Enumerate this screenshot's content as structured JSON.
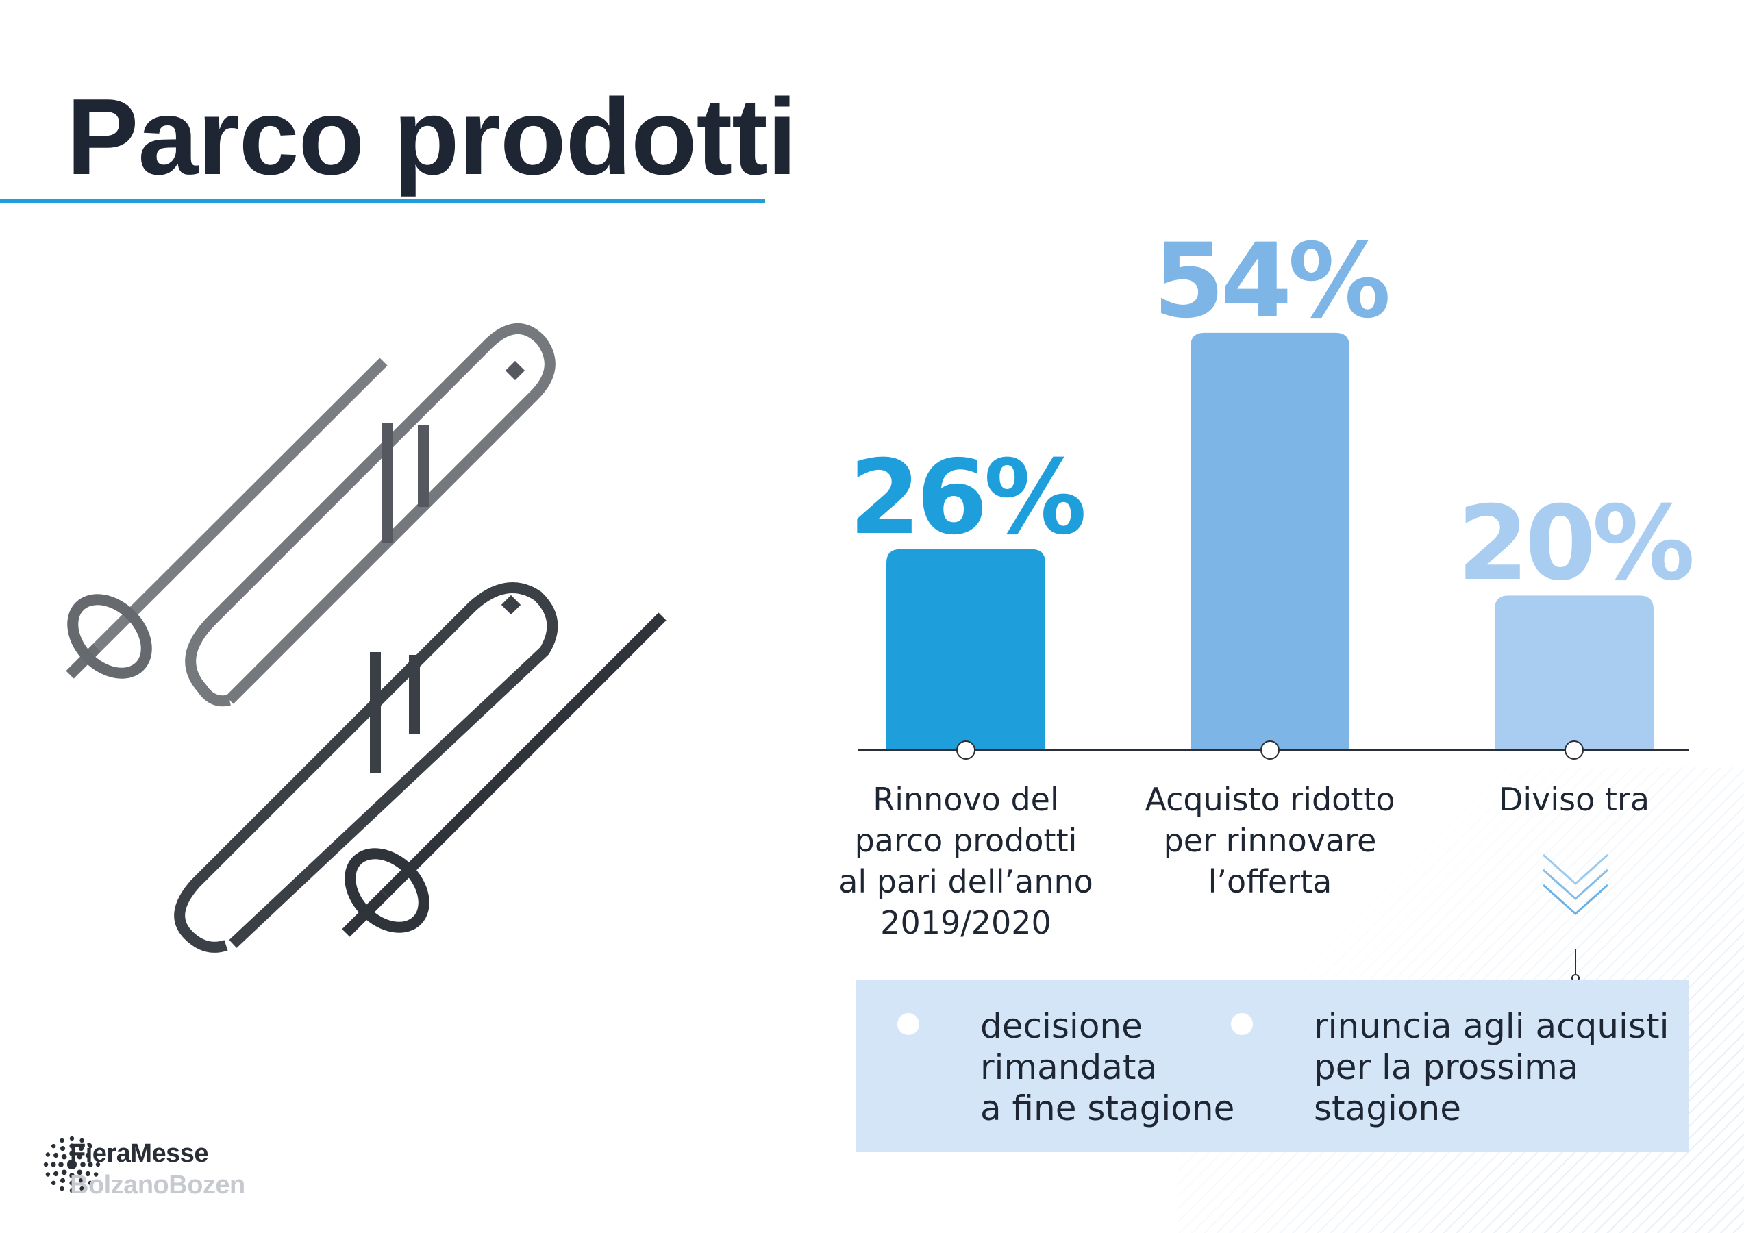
{
  "page": {
    "title": "Parco prodotti"
  },
  "colors": {
    "title": "#1f2633",
    "accent": "#1e9fdc",
    "bar_1": "#1e9fdc",
    "bar_2": "#7db6e6",
    "bar_3": "#a9cdf0",
    "split_box": "#d3e5f7"
  },
  "chart_data": {
    "type": "bar",
    "categories": [
      "Rinnovo del\nparco prodotti\nal pari dell’anno\n2019/2020",
      "Acquisto ridotto\nper rinnovare\nl’offerta",
      "Diviso tra"
    ],
    "values": [
      26,
      54,
      20
    ],
    "value_labels": [
      "26%",
      "54%",
      "20%"
    ],
    "unit": "%",
    "ylim": [
      0,
      60
    ],
    "grid": false,
    "legend": "none"
  },
  "split": {
    "icon": "chevron-down-icon",
    "options": [
      "decisione\nrimandata\na fine stagione",
      "rinuncia agli acquisti\nper la prossima\nstagione"
    ]
  },
  "illustration": {
    "icon": "ski-and-poles-icon"
  },
  "logo": {
    "line1": "FieraMesse",
    "line2": "BolzanoBozen",
    "icon": "fieramesse-dots-logo"
  }
}
